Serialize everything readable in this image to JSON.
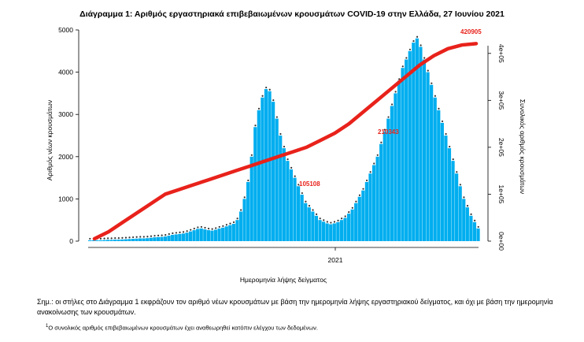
{
  "chart_data": {
    "type": "bar",
    "title": "Διάγραμμα 1: Αριθμός εργαστηριακά επιβεβαιωμένων κρουσμάτων COVID-19 στην Ελλάδα, 27 Ιουνίου 2021",
    "xlabel": "Ημερομηνία λήψης δείγματος",
    "ylabel": "Αριθμός νέων κρουσμάτων",
    "y2label": "Συνολικός αριθμός κρουσμάτων",
    "ylim": [
      0,
      5000
    ],
    "y2lim": [
      0,
      450000
    ],
    "yticks": [
      "0",
      "1000",
      "2000",
      "3000",
      "4000",
      "5000"
    ],
    "y2ticks": [
      "0e+00",
      "1e+05",
      "2e+05",
      "3e+05",
      "4e+05"
    ],
    "xticks": [
      "2021"
    ],
    "bar_color": "#00aeef",
    "line_color": "#e8221b",
    "grid": false,
    "series": [
      {
        "type": "bar",
        "values": [
          20,
          20,
          20,
          20,
          25,
          30,
          30,
          35,
          35,
          40,
          45,
          50,
          55,
          60,
          65,
          65,
          70,
          80,
          90,
          95,
          100,
          110,
          130,
          150,
          160,
          170,
          180,
          200,
          230,
          260,
          290,
          300,
          280,
          260,
          250,
          270,
          300,
          320,
          350,
          380,
          410,
          500,
          700,
          1000,
          1400,
          2000,
          2700,
          3100,
          3400,
          3600,
          3550,
          3300,
          2900,
          2500,
          2200,
          1900,
          1700,
          1500,
          1300,
          1100,
          900,
          800,
          700,
          600,
          500,
          460,
          420,
          400,
          420,
          450,
          500,
          550,
          650,
          750,
          900,
          1050,
          1200,
          1400,
          1600,
          1800,
          2000,
          2300,
          2600,
          2900,
          3200,
          3500,
          3800,
          4100,
          4300,
          4500,
          4700,
          4800,
          4600,
          4300,
          4000,
          3700,
          3400,
          3100,
          2800,
          2500,
          2200,
          1900,
          1600,
          1300,
          1000,
          800,
          600,
          450,
          300
        ]
      },
      {
        "type": "line",
        "values": [
          5000,
          20000,
          40000,
          60000,
          80000,
          100000,
          110000,
          120000,
          130000,
          140000,
          150000,
          160000,
          170000,
          180000,
          190000,
          200000,
          215000,
          230000,
          250000,
          275000,
          300000,
          325000,
          350000,
          375000,
          395000,
          410000,
          418000,
          420905
        ]
      }
    ],
    "annotations": [
      "105108",
      "210343",
      "420905"
    ]
  },
  "note": "Σημ.: οι στήλες στο Διάγραμμα 1 εκφράζουν τον αριθμό νέων κρουσμάτων με βάση την ημερομηνία λήψης εργαστηριακού δείγματος, και όχι με βάση την ημερομηνία ανακοίνωσης των κρουσμάτων.",
  "footnote_marker": "1",
  "footnote": "Ο συνολικός αριθμός επιβεβαιωμένων κρουσμάτων έχει αναθεωρηθεί κατόπιν ελέγχου των δεδομένων."
}
